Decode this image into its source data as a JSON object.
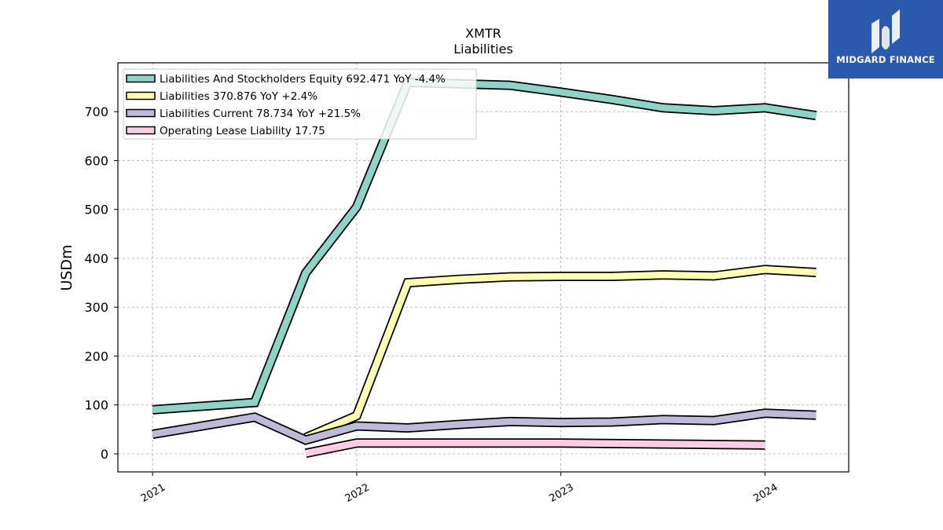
{
  "chart_data": {
    "type": "line",
    "title": "XMTR",
    "subtitle": "Liabilities",
    "ylabel": "USDm",
    "xlabel": "",
    "ylim": [
      -37,
      800
    ],
    "xlim": [
      2020.83,
      2024.41
    ],
    "yticks": [
      0,
      100,
      200,
      300,
      400,
      500,
      600,
      700
    ],
    "xticks": [
      {
        "label": "2021",
        "x": 2021.0
      },
      {
        "label": "2022",
        "x": 2022.0
      },
      {
        "label": "2023",
        "x": 2023.0
      },
      {
        "label": "2024",
        "x": 2024.0
      }
    ],
    "grid": true,
    "legend_position": "top-left",
    "series": [
      {
        "name": "Liabilities And Stockholders Equity",
        "legend_label": "Liabilities And Stockholders Equity  692.471 YoY -4.4%",
        "color": "#8dd3c7",
        "x": [
          2021.0,
          2021.5,
          2021.75,
          2022.0,
          2022.25,
          2022.5,
          2022.75,
          2023.0,
          2023.25,
          2023.5,
          2023.75,
          2024.0,
          2024.25
        ],
        "y": [
          90,
          105,
          370,
          505,
          760,
          757,
          754,
          740,
          725,
          708,
          702,
          708,
          692
        ]
      },
      {
        "name": "Liabilities",
        "legend_label": "Liabilities  370.876 YoY +2.4%",
        "color": "#ffffb3",
        "x": [
          2021.75,
          2022.0,
          2022.25,
          2022.5,
          2022.75,
          2023.0,
          2023.25,
          2023.5,
          2023.75,
          2024.0,
          2024.25
        ],
        "y": [
          33,
          78,
          350,
          357,
          362,
          363,
          363,
          366,
          364,
          377,
          371
        ]
      },
      {
        "name": "Liabilities Current",
        "legend_label": "Liabilities Current  78.734 YoY +21.5%",
        "color": "#bebada",
        "x": [
          2021.0,
          2021.5,
          2021.75,
          2022.0,
          2022.25,
          2022.5,
          2022.75,
          2023.0,
          2023.25,
          2023.5,
          2023.75,
          2024.0,
          2024.25
        ],
        "y": [
          40,
          75,
          28,
          57,
          53,
          60,
          66,
          64,
          65,
          70,
          68,
          83,
          79
        ]
      },
      {
        "name": "Operating Lease Liability",
        "legend_label": "Operating Lease Liability  17.75",
        "color": "#fccde5",
        "x": [
          2021.75,
          2022.0,
          2022.25,
          2022.5,
          2022.75,
          2023.0,
          2023.25,
          2023.5,
          2023.75,
          2024.0
        ],
        "y": [
          1,
          22,
          22,
          22,
          22,
          22,
          21,
          20,
          19,
          18
        ]
      }
    ]
  },
  "logo": {
    "text": "MIDGARD FINANCE",
    "background": "#2a59ad"
  }
}
